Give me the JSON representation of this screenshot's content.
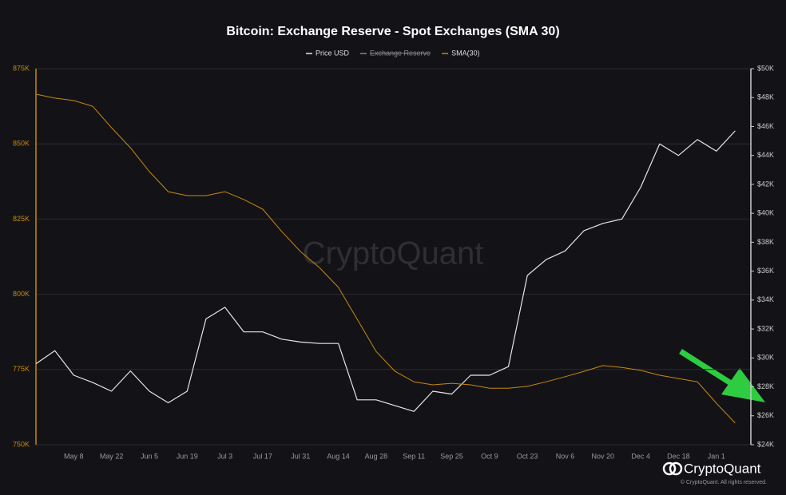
{
  "chart_data": {
    "type": "line",
    "title": "Bitcoin: Exchange Reserve - Spot Exchanges (SMA 30)",
    "categories": [
      null,
      null,
      "May 8",
      null,
      "May 22",
      null,
      "Jun 5",
      null,
      "Jun 19",
      null,
      "Jul 3",
      null,
      "Jul 17",
      null,
      "Jul 31",
      null,
      "Aug 14",
      null,
      "Aug 28",
      null,
      "Sep 11",
      null,
      "Sep 25",
      null,
      "Oct 9",
      null,
      "Oct 23",
      null,
      "Nov 6",
      null,
      "Nov 20",
      null,
      "Dec 4",
      null,
      "Dec 18",
      null,
      "Jan 1",
      null
    ],
    "series": [
      {
        "name": "Price USD",
        "color": "#e6e6e6",
        "axis": "y2",
        "values": [
          29.6,
          30.5,
          28.8,
          28.3,
          27.7,
          29.1,
          27.7,
          26.9,
          27.7,
          32.7,
          33.5,
          31.8,
          31.8,
          31.3,
          31.1,
          31.0,
          31.0,
          27.1,
          27.1,
          26.7,
          26.3,
          27.7,
          27.5,
          28.8,
          28.8,
          29.4,
          35.7,
          36.8,
          37.4,
          38.8,
          39.3,
          39.6,
          41.8,
          44.8,
          44.0,
          45.1,
          44.3,
          45.7
        ]
      },
      {
        "name": "Exchange Reserve",
        "color": "#8a8a8a",
        "hidden": true
      },
      {
        "name": "SMA(30)",
        "color": "#c8870e",
        "values": [
          866.5,
          865.2,
          864.4,
          862.5,
          855.4,
          848.7,
          840.8,
          834.1,
          832.8,
          832.8,
          834.1,
          831.5,
          828.3,
          820.9,
          814.2,
          808.9,
          802.3,
          791.7,
          781.0,
          774.4,
          770.9,
          769.9,
          770.4,
          769.9,
          768.8,
          768.8,
          769.4,
          770.9,
          772.6,
          774.4,
          776.3,
          775.7,
          774.7,
          773.1,
          772.0,
          770.9,
          763.8,
          757.2
        ]
      }
    ],
    "ylim": [
      750,
      875
    ],
    "yticks": [
      {
        "value": 750,
        "label": "750K"
      },
      {
        "value": 775,
        "label": "775K"
      },
      {
        "value": 800,
        "label": "800K"
      },
      {
        "value": 825,
        "label": "825K"
      },
      {
        "value": 850,
        "label": "850K"
      },
      {
        "value": 875,
        "label": "875K"
      }
    ],
    "y2lim": [
      24,
      50
    ],
    "y2ticks": [
      {
        "value": 24,
        "label": "$24K"
      },
      {
        "value": 26,
        "label": "$26K"
      },
      {
        "value": 28,
        "label": "$28K"
      },
      {
        "value": 30,
        "label": "$30K"
      },
      {
        "value": 32,
        "label": "$32K"
      },
      {
        "value": 34,
        "label": "$34K"
      },
      {
        "value": 36,
        "label": "$36K"
      },
      {
        "value": 38,
        "label": "$38K"
      },
      {
        "value": 40,
        "label": "$40K"
      },
      {
        "value": 42,
        "label": "$42K"
      },
      {
        "value": 44,
        "label": "$44K"
      },
      {
        "value": 46,
        "label": "$46K"
      },
      {
        "value": 48,
        "label": "$48K"
      },
      {
        "value": 50,
        "label": "$50K"
      }
    ],
    "yaxis_color": "#c8870e",
    "grid": true,
    "watermark": "CryptoQuant",
    "brand": "CryptoQuant",
    "copyright": "© CryptoQuant. All rights reserved."
  }
}
